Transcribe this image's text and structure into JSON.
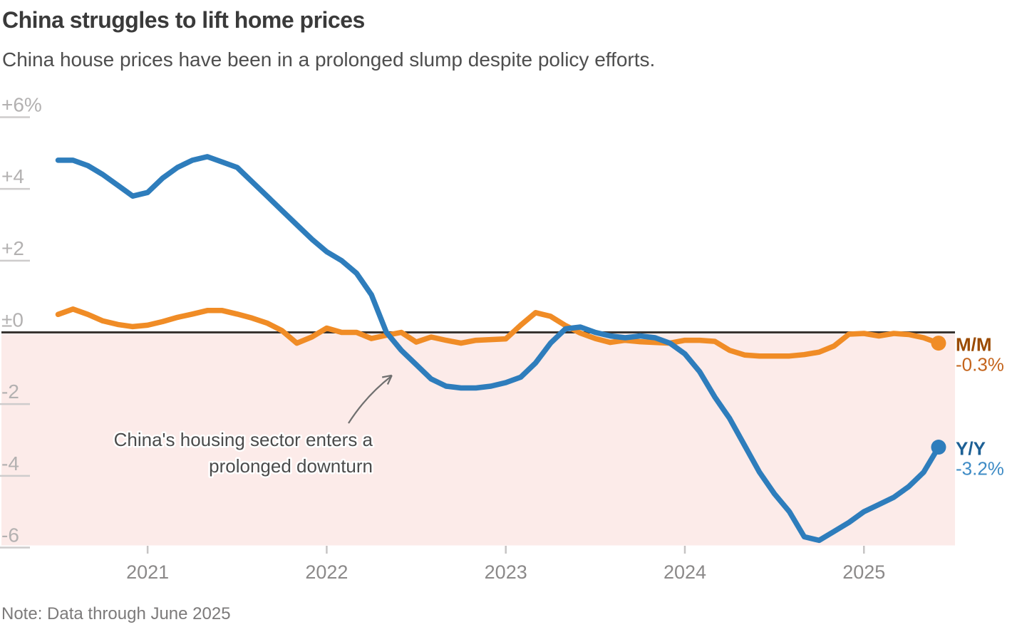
{
  "header": {
    "title": "China struggles to lift home prices",
    "subtitle": "China house prices have been in a prolonged slump despite policy efforts."
  },
  "note": "Note: Data through June 2025",
  "chart_data": {
    "type": "line",
    "title": "China struggles to lift home prices",
    "subtitle": "China house prices have been in a prolonged slump despite policy efforts.",
    "note": "Note: Data through June 2025",
    "unit": "percent",
    "x_start_month": "2020-07",
    "x_end_month": "2025-06",
    "months": 60,
    "y_axis": {
      "tick_labels": [
        "+6%",
        "+4",
        "+2",
        "±0",
        "-2",
        "-4",
        "-6"
      ],
      "tick_values": [
        6,
        4,
        2,
        0,
        -2,
        -4,
        -6
      ],
      "ylim": [
        -6.6,
        6.6
      ],
      "label_color": "#b3b1b1",
      "tick_line_color": "#cecccc"
    },
    "x_axis": {
      "tick_labels": [
        "2021",
        "2022",
        "2023",
        "2024",
        "2025"
      ],
      "tick_month_index": [
        6,
        18,
        30,
        42,
        54
      ],
      "label_color": "#8b8989",
      "tick_line_color": "#c6c4c4"
    },
    "zero_line_color": "#383330",
    "negative_region_color": "#fcebe9",
    "annotation": {
      "lines": [
        "China's housing sector enters a",
        "prolonged downturn"
      ],
      "color": "#4b4b4b",
      "arrow_color": "#6f6f6f"
    },
    "legend_position": "right-end-labels",
    "grid": "left-tick-dashes-only",
    "series": [
      {
        "id": "mm",
        "name": "M/M",
        "end_label": "M/M",
        "end_value_label": "-0.3%",
        "color": "#f08c26",
        "label_color": "#9a4a00",
        "value_color": "#c4641c",
        "values": [
          0.5,
          0.65,
          0.5,
          0.32,
          0.22,
          0.16,
          0.2,
          0.3,
          0.42,
          0.51,
          0.61,
          0.61,
          0.51,
          0.4,
          0.26,
          0.05,
          -0.3,
          -0.13,
          0.12,
          0.0,
          0.0,
          -0.17,
          -0.08,
          0.0,
          -0.27,
          -0.13,
          -0.22,
          -0.3,
          -0.22,
          -0.2,
          -0.18,
          0.2,
          0.55,
          0.45,
          0.19,
          -0.02,
          -0.17,
          -0.28,
          -0.22,
          -0.26,
          -0.28,
          -0.3,
          -0.22,
          -0.22,
          -0.25,
          -0.5,
          -0.63,
          -0.66,
          -0.66,
          -0.66,
          -0.62,
          -0.55,
          -0.38,
          -0.05,
          -0.03,
          -0.1,
          -0.03,
          -0.06,
          -0.15,
          -0.3
        ]
      },
      {
        "id": "yy",
        "name": "Y/Y",
        "end_label": "Y/Y",
        "end_value_label": "-3.2%",
        "color": "#2e7dbc",
        "label_color": "#1d6095",
        "value_color": "#3e8bc5",
        "values": [
          4.8,
          4.8,
          4.65,
          4.4,
          4.1,
          3.8,
          3.9,
          4.3,
          4.6,
          4.8,
          4.9,
          4.75,
          4.6,
          4.2,
          3.8,
          3.4,
          3.0,
          2.6,
          2.25,
          2.0,
          1.65,
          1.05,
          0.0,
          -0.5,
          -0.9,
          -1.3,
          -1.5,
          -1.55,
          -1.55,
          -1.5,
          -1.4,
          -1.25,
          -0.85,
          -0.3,
          0.1,
          0.15,
          0.0,
          -0.1,
          -0.15,
          -0.1,
          -0.15,
          -0.3,
          -0.6,
          -1.1,
          -1.8,
          -2.4,
          -3.15,
          -3.9,
          -4.5,
          -5.0,
          -5.7,
          -5.8,
          -5.55,
          -5.3,
          -5.0,
          -4.8,
          -4.6,
          -4.3,
          -3.9,
          -3.2
        ]
      }
    ]
  }
}
